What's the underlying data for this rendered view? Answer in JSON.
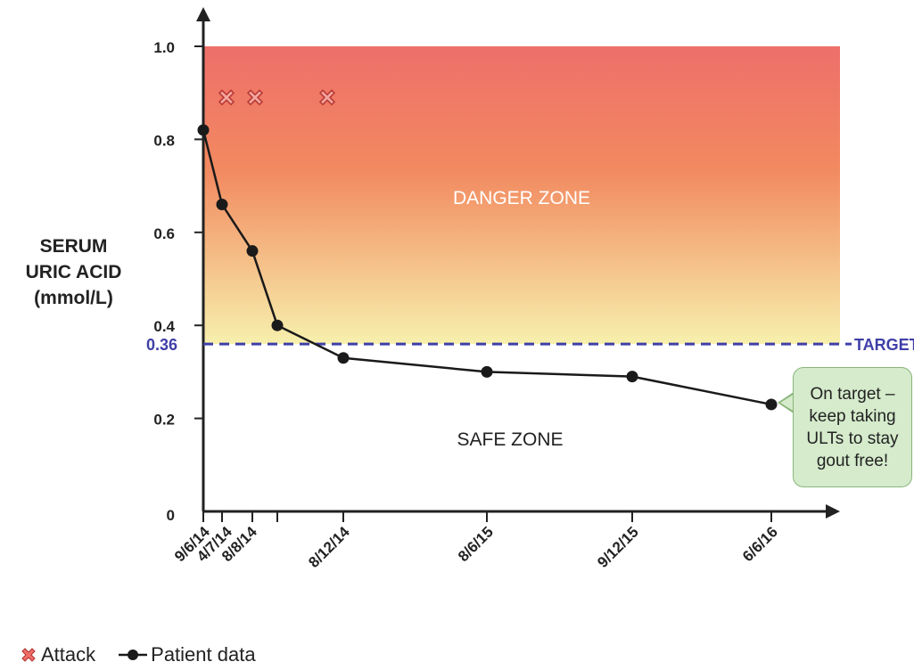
{
  "chart_data": {
    "type": "line",
    "ylabel_lines": [
      "SERUM",
      "URIC ACID",
      "(mmol/L)"
    ],
    "ylim": [
      0,
      1.0
    ],
    "yticks": [
      {
        "value": 0,
        "label": "0"
      },
      {
        "value": 0.2,
        "label": "0.2"
      },
      {
        "value": 0.4,
        "label": "0.4"
      },
      {
        "value": 0.6,
        "label": "0.6"
      },
      {
        "value": 0.8,
        "label": "0.8"
      },
      {
        "value": 1.0,
        "label": "1.0"
      }
    ],
    "categories": [
      "9/6/14",
      "4/7/14",
      "8/8/14",
      "8/12/14",
      "8/6/15",
      "9/12/15",
      "6/6/16"
    ],
    "series": [
      {
        "name": "Patient data",
        "color": "#1a1a1a",
        "points": [
          {
            "x": "9/6/14",
            "y": 0.82
          },
          {
            "x": "",
            "y": 0.66
          },
          {
            "x": "4/7/14",
            "y": 0.56
          },
          {
            "x": "8/8/14",
            "y": 0.4
          },
          {
            "x": "8/12/14",
            "y": 0.33
          },
          {
            "x": "8/6/15",
            "y": 0.3
          },
          {
            "x": "9/12/15",
            "y": 0.29
          },
          {
            "x": "6/6/16",
            "y": 0.23
          }
        ]
      }
    ],
    "attacks": {
      "name": "Attack",
      "color": "#d9534f",
      "y": 0.89,
      "count": 3
    },
    "target": {
      "value": 0.36,
      "label_value": "0.36",
      "label": "TARGET",
      "color": "#3f3fa8"
    },
    "zones": {
      "danger": "DANGER ZONE",
      "safe": "SAFE ZONE"
    },
    "zone_colors": {
      "danger_top": "#ee6f6a",
      "danger_mid": "#f28a60",
      "danger_bottom": "#f7f0ad"
    },
    "callout": "On target – keep taking ULTs to stay gout free!",
    "callout_color": "#d5ebcc",
    "legend": [
      {
        "label": "Attack",
        "icon": "x-marker-icon"
      },
      {
        "label": "Patient data",
        "icon": "line-dot-icon"
      }
    ],
    "grid": false
  }
}
